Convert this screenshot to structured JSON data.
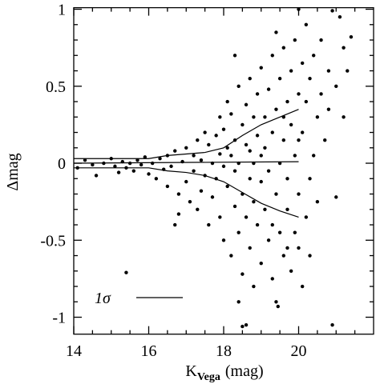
{
  "chart_data": {
    "type": "scatter",
    "ylabel": "Δmag",
    "xlabel": {
      "main": "K",
      "sub": "Vega",
      "unit": "(mag)"
    },
    "legend_label": "1σ",
    "xlim": [
      14,
      22
    ],
    "ylim": [
      -1.11,
      1.01
    ],
    "xticks": [
      14,
      16,
      18,
      20
    ],
    "yticks": [
      -1,
      -0.5,
      0,
      0.5,
      1
    ],
    "xminorticks": [
      14.5,
      15,
      15.5,
      16.5,
      17,
      17.5,
      18.5,
      19,
      19.5,
      20.5,
      21,
      21.5
    ],
    "yminorticks": [
      -0.9,
      -0.8,
      -0.7,
      -0.6,
      -0.4,
      -0.3,
      -0.2,
      -0.1,
      0.1,
      0.2,
      0.3,
      0.4,
      0.6,
      0.7,
      0.8,
      0.9
    ],
    "color": "#000000",
    "points": [
      [
        14.1,
        -0.03
      ],
      [
        14.3,
        0.02
      ],
      [
        14.5,
        -0.01
      ],
      [
        14.6,
        -0.08
      ],
      [
        14.8,
        0.0
      ],
      [
        15.0,
        0.03
      ],
      [
        15.1,
        -0.02
      ],
      [
        15.2,
        -0.06
      ],
      [
        15.3,
        0.01
      ],
      [
        15.4,
        -0.03
      ],
      [
        15.5,
        0.0
      ],
      [
        15.6,
        -0.05
      ],
      [
        15.7,
        0.02
      ],
      [
        15.8,
        -0.01
      ],
      [
        15.9,
        0.04
      ],
      [
        16.0,
        -0.07
      ],
      [
        16.1,
        0.0
      ],
      [
        16.2,
        -0.1
      ],
      [
        16.3,
        0.03
      ],
      [
        16.4,
        -0.04
      ],
      [
        16.5,
        0.05
      ],
      [
        16.5,
        -0.15
      ],
      [
        16.6,
        -0.02
      ],
      [
        16.7,
        0.08
      ],
      [
        16.8,
        -0.2
      ],
      [
        16.9,
        0.01
      ],
      [
        15.4,
        -0.71
      ],
      [
        16.7,
        -0.4
      ],
      [
        16.8,
        -0.33
      ],
      [
        17.0,
        0.1
      ],
      [
        17.0,
        -0.12
      ],
      [
        17.1,
        -0.25
      ],
      [
        17.2,
        0.05
      ],
      [
        17.2,
        -0.05
      ],
      [
        17.3,
        0.15
      ],
      [
        17.3,
        -0.3
      ],
      [
        17.4,
        0.02
      ],
      [
        17.4,
        -0.18
      ],
      [
        17.5,
        0.2
      ],
      [
        17.5,
        -0.08
      ],
      [
        17.6,
        0.12
      ],
      [
        17.6,
        -0.4
      ],
      [
        17.7,
        0.0
      ],
      [
        17.7,
        -0.22
      ],
      [
        17.8,
        0.18
      ],
      [
        17.8,
        -0.1
      ],
      [
        17.9,
        0.3
      ],
      [
        17.9,
        -0.35
      ],
      [
        17.9,
        0.06
      ],
      [
        18.0,
        -0.5
      ],
      [
        18.0,
        0.22
      ],
      [
        18.0,
        -0.02
      ],
      [
        18.1,
        0.4
      ],
      [
        18.1,
        -0.15
      ],
      [
        18.1,
        0.1
      ],
      [
        18.2,
        -0.6
      ],
      [
        18.2,
        0.05
      ],
      [
        18.2,
        0.32
      ],
      [
        18.3,
        -0.28
      ],
      [
        18.3,
        0.15
      ],
      [
        18.3,
        -0.05
      ],
      [
        18.4,
        0.5
      ],
      [
        18.4,
        -0.45
      ],
      [
        18.4,
        0.0
      ],
      [
        18.5,
        -0.72
      ],
      [
        18.5,
        0.25
      ],
      [
        18.5,
        -0.2
      ],
      [
        18.5,
        -1.06
      ],
      [
        18.6,
        0.12
      ],
      [
        18.6,
        -0.35
      ],
      [
        18.6,
        0.38
      ],
      [
        18.7,
        -0.1
      ],
      [
        18.7,
        0.55
      ],
      [
        18.7,
        -0.55
      ],
      [
        18.7,
        0.08
      ],
      [
        18.8,
        -0.25
      ],
      [
        18.8,
        0.3
      ],
      [
        18.8,
        -0.8
      ],
      [
        18.8,
        0.0
      ],
      [
        18.9,
        0.45
      ],
      [
        18.9,
        -0.4
      ],
      [
        18.9,
        0.18
      ],
      [
        19.0,
        -0.12
      ],
      [
        19.0,
        0.62
      ],
      [
        19.0,
        -0.65
      ],
      [
        19.0,
        0.05
      ],
      [
        18.3,
        0.7
      ],
      [
        18.6,
        -1.05
      ],
      [
        18.4,
        -0.9
      ],
      [
        19.1,
        0.3
      ],
      [
        19.1,
        -0.3
      ],
      [
        19.1,
        0.1
      ],
      [
        19.2,
        -0.5
      ],
      [
        19.2,
        0.48
      ],
      [
        19.2,
        -0.05
      ],
      [
        19.3,
        0.2
      ],
      [
        19.3,
        -0.75
      ],
      [
        19.3,
        0.7
      ],
      [
        19.4,
        -0.2
      ],
      [
        19.4,
        0.35
      ],
      [
        19.4,
        -0.9
      ],
      [
        19.4,
        0.85
      ],
      [
        19.5,
        0.0
      ],
      [
        19.5,
        -0.45
      ],
      [
        19.5,
        0.55
      ],
      [
        19.6,
        -0.6
      ],
      [
        19.6,
        0.15
      ],
      [
        19.6,
        0.75
      ],
      [
        19.7,
        -0.3
      ],
      [
        19.7,
        0.4
      ],
      [
        19.7,
        -0.1
      ],
      [
        19.8,
        0.6
      ],
      [
        19.8,
        -0.7
      ],
      [
        19.8,
        0.25
      ],
      [
        19.9,
        -0.45
      ],
      [
        19.9,
        0.05
      ],
      [
        19.9,
        0.8
      ],
      [
        20.0,
        -0.2
      ],
      [
        20.0,
        0.45
      ],
      [
        20.0,
        -0.55
      ],
      [
        20.0,
        0.15
      ],
      [
        19.45,
        -0.93
      ],
      [
        19.6,
        0.3
      ],
      [
        19.3,
        -0.4
      ],
      [
        19.7,
        -0.55
      ],
      [
        20.1,
        0.65
      ],
      [
        20.1,
        -0.8
      ],
      [
        20.1,
        0.2
      ],
      [
        20.2,
        -0.35
      ],
      [
        20.2,
        0.4
      ],
      [
        20.2,
        0.9
      ],
      [
        20.3,
        -0.1
      ],
      [
        20.3,
        0.55
      ],
      [
        20.3,
        -0.6
      ],
      [
        20.4,
        0.7
      ],
      [
        20.4,
        0.05
      ],
      [
        20.5,
        0.3
      ],
      [
        20.5,
        -0.25
      ],
      [
        20.6,
        0.8
      ],
      [
        20.6,
        0.45
      ],
      [
        20.7,
        0.15
      ],
      [
        20.8,
        0.6
      ],
      [
        20.9,
        0.99
      ],
      [
        20.9,
        -1.05
      ],
      [
        21.0,
        0.5
      ],
      [
        21.0,
        -0.22
      ],
      [
        21.1,
        0.95
      ],
      [
        21.2,
        0.75
      ],
      [
        21.3,
        0.6
      ],
      [
        21.4,
        0.82
      ],
      [
        20.0,
        1.0
      ],
      [
        20.8,
        0.35
      ],
      [
        21.2,
        0.3
      ]
    ],
    "lines": [
      {
        "x": [
          14,
          15,
          16,
          16.5,
          17,
          17.5,
          18,
          18.5,
          19,
          19.5,
          20
        ],
        "y": [
          0.03,
          0.03,
          0.03,
          0.05,
          0.06,
          0.07,
          0.1,
          0.18,
          0.25,
          0.3,
          0.35
        ]
      },
      {
        "x": [
          14,
          15,
          16,
          16.5,
          17,
          17.5,
          18,
          18.5,
          19,
          19.5,
          20
        ],
        "y": [
          -0.03,
          -0.03,
          -0.03,
          -0.05,
          -0.06,
          -0.08,
          -0.12,
          -0.19,
          -0.26,
          -0.31,
          -0.35
        ]
      },
      {
        "x": [
          14,
          20
        ],
        "y": [
          0,
          0.01
        ]
      }
    ]
  }
}
